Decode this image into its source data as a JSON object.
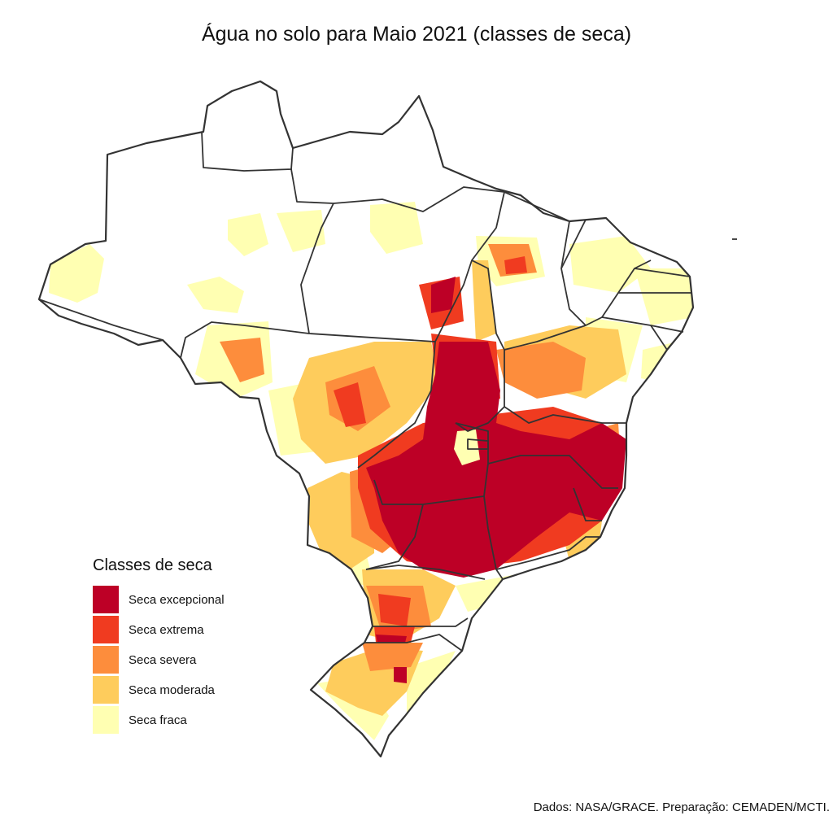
{
  "title": "Água no solo para Maio 2021 (classes de seca)",
  "caption": "Dados: NASA/GRACE. Preparação: CEMADEN/MCTI.",
  "legend": {
    "title": "Classes de seca",
    "items": [
      {
        "label": "Seca excepcional",
        "color": "#bd0026"
      },
      {
        "label": "Seca extrema",
        "color": "#f03b20"
      },
      {
        "label": "Seca severa",
        "color": "#fd8d3c"
      },
      {
        "label": "Seca moderada",
        "color": "#fecc5c"
      },
      {
        "label": "Seca fraca",
        "color": "#ffffb2"
      }
    ]
  },
  "colors": {
    "background": "#ffffff",
    "land": "#ffffff",
    "border": "#333333"
  }
}
